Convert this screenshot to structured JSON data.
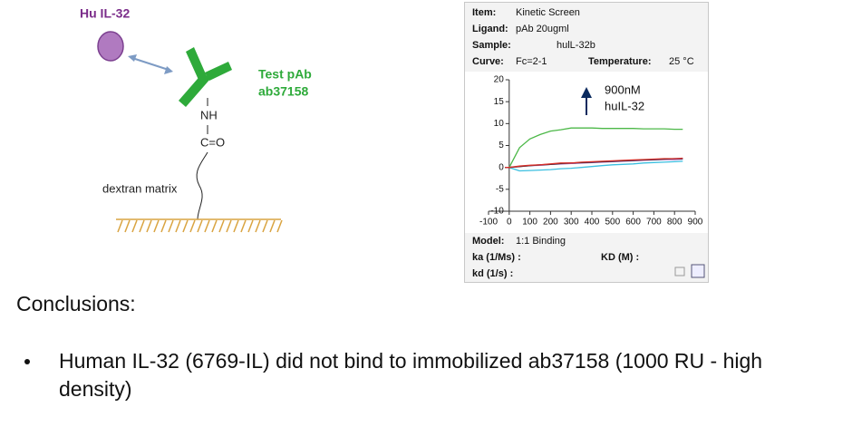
{
  "diagram": {
    "analyte_label": "Hu IL-32",
    "antibody_label": [
      "Test pAb",
      "ab37158"
    ],
    "nh": "NH",
    "co": "C=O",
    "matrix": "dextran matrix"
  },
  "panel": {
    "item_label": "Item:",
    "item": "Kinetic Screen",
    "ligand_label": "Ligand:",
    "ligand": "pAb 20ugml",
    "sample_label": "Sample:",
    "sample": "hulL-32b",
    "curve_label": "Curve:",
    "curve": "Fc=2-1",
    "temperature_label": "Temperature:",
    "temperature": "25 °C",
    "model_label": "Model:",
    "model": "1:1 Binding",
    "ka_label": "ka (1/Ms) :",
    "KD_label": "KD (M) :",
    "kd_label": "kd (1/s) :"
  },
  "chart_data": {
    "type": "line",
    "annotation": [
      "900nM",
      "huIL-32"
    ],
    "xlim": [
      -100,
      900
    ],
    "xticks": [
      -100,
      0,
      100,
      200,
      300,
      400,
      500,
      600,
      700,
      800,
      900
    ],
    "ylim": [
      -10,
      20
    ],
    "yticks": [
      -10,
      -5,
      0,
      5,
      10,
      15,
      20
    ],
    "x": [
      -20,
      0,
      50,
      100,
      150,
      200,
      250,
      300,
      350,
      400,
      450,
      500,
      550,
      600,
      650,
      700,
      750,
      800,
      840
    ],
    "series": [
      {
        "color": "#4cb848",
        "values": [
          0,
          0,
          4.5,
          6.5,
          7.5,
          8.3,
          8.6,
          9,
          9,
          9,
          8.9,
          8.9,
          8.9,
          8.9,
          8.8,
          8.8,
          8.8,
          8.7,
          8.7
        ]
      },
      {
        "color": "#3bbfe0",
        "values": [
          0,
          0,
          -0.8,
          -0.7,
          -0.6,
          -0.5,
          -0.3,
          -0.2,
          0,
          0.2,
          0.4,
          0.6,
          0.7,
          0.8,
          1,
          1.1,
          1.2,
          1.3,
          1.4
        ]
      },
      {
        "color": "#9b59b6",
        "values": [
          0,
          0,
          0.2,
          0.4,
          0.5,
          0.7,
          0.8,
          0.9,
          1,
          1.1,
          1.2,
          1.3,
          1.4,
          1.5,
          1.6,
          1.7,
          1.8,
          1.8,
          1.9
        ]
      },
      {
        "color": "#222222",
        "values": [
          0,
          0,
          0.2,
          0.4,
          0.6,
          0.7,
          0.9,
          1,
          1.1,
          1.2,
          1.3,
          1.4,
          1.5,
          1.6,
          1.7,
          1.8,
          1.9,
          2,
          2
        ]
      },
      {
        "color": "#d9302b",
        "values": [
          0,
          0,
          0.3,
          0.5,
          0.6,
          0.8,
          1,
          1,
          1.2,
          1.3,
          1.4,
          1.5,
          1.6,
          1.7,
          1.8,
          1.9,
          2,
          2,
          2.1
        ]
      }
    ]
  },
  "conclusions": {
    "heading": "Conclusions:",
    "bullets": [
      "Human IL-32 (6769-IL) did not bind to immobilized ab37158 (1000 RU - high density)"
    ]
  }
}
